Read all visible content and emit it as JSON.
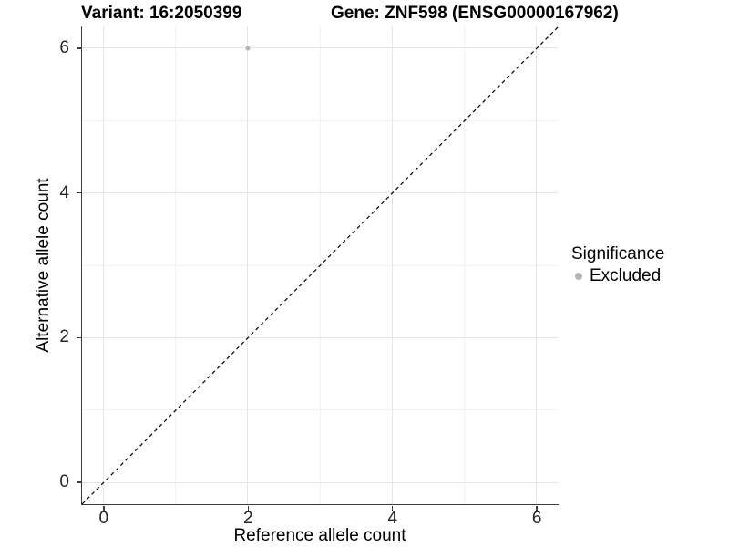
{
  "header": {
    "variant_title": "Variant: 16:2050399",
    "gene_title": "Gene: ZNF598 (ENSG00000167962)"
  },
  "legend": {
    "title": "Significance",
    "items": [
      {
        "label": "Excluded",
        "color": "#b4b4b4"
      }
    ]
  },
  "chart_data": {
    "type": "scatter",
    "title": "Variant: 16:2050399 | Gene: ZNF598 (ENSG00000167962)",
    "xlabel": "Reference allele count",
    "ylabel": "Alternative allele count",
    "xlim": [
      -0.3,
      6.3
    ],
    "ylim": [
      -0.3,
      6.3
    ],
    "x_ticks": [
      0,
      2,
      4,
      6
    ],
    "y_ticks": [
      0,
      2,
      4,
      6
    ],
    "x_minor_ticks": [
      1,
      3,
      5
    ],
    "y_minor_ticks": [
      1,
      3,
      5
    ],
    "grid": true,
    "legend_position": "right",
    "series": [
      {
        "name": "Excluded",
        "color": "#b4b4b4",
        "marker_size_px": 5,
        "points": [
          {
            "x": 2,
            "y": 6
          }
        ]
      }
    ],
    "reference_line": {
      "kind": "identity",
      "from": [
        -0.3,
        -0.3
      ],
      "to": [
        6.3,
        6.3
      ],
      "style": "dashed",
      "color": "#000000"
    }
  },
  "colors": {
    "background": "#ffffff",
    "grid_major": "#e6e6e6",
    "grid_minor": "#f2f2f2",
    "axis_line": "#3c3c3c",
    "tick_label": "#262626",
    "legend_key": "#b4b4b4"
  }
}
